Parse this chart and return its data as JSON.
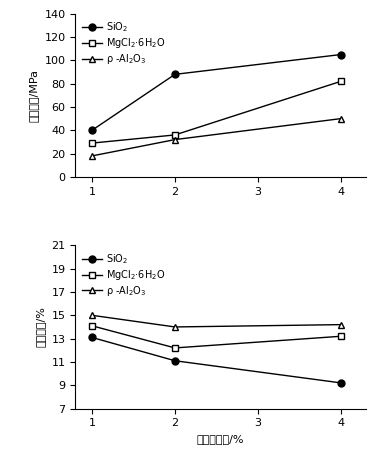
{
  "x": [
    1,
    2,
    4
  ],
  "top": {
    "SiO2": [
      40,
      88,
      105
    ],
    "MgCl2_6H2O": [
      29,
      36,
      82
    ],
    "rho_Al2O3": [
      18,
      32,
      50
    ],
    "ylabel": "耐压强度/MPa",
    "ylim": [
      0,
      140
    ],
    "yticks": [
      0,
      20,
      40,
      60,
      80,
      100,
      120,
      140
    ]
  },
  "bottom": {
    "SiO2": [
      13.1,
      11.1,
      9.2
    ],
    "MgCl2_6H2O": [
      14.1,
      12.2,
      13.2
    ],
    "rho_Al2O3": [
      15.0,
      14.0,
      14.2
    ],
    "ylabel": "显气孔率/%",
    "ylim": [
      7,
      21
    ],
    "yticks": [
      7,
      9,
      11,
      13,
      15,
      17,
      19,
      21
    ]
  },
  "xlabel": "结合剂含量/%",
  "xticks": [
    1,
    2,
    3,
    4
  ],
  "legend_SiO2": "SiO$_2$",
  "legend_MgCl2": "MgCl$_2$·6H$_2$O",
  "legend_rhoAl2O3": "ρ -Al$_2$O$_3$",
  "line_color": "#000000",
  "marker_circle": "o",
  "marker_square": "s",
  "marker_triangle": "^",
  "markersize": 5,
  "linewidth": 1.0
}
